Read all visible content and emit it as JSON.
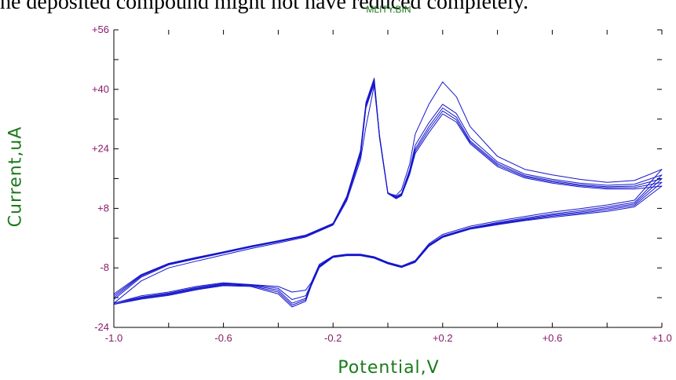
{
  "top_text": "he deposited compound might not have reduced completely.",
  "chart_data": {
    "type": "line",
    "title": "MLITY.BIN",
    "xlabel": "Potential,V",
    "ylabel": "Current,uA",
    "xlim": [
      -1.0,
      1.0
    ],
    "ylim": [
      -24,
      56
    ],
    "x_ticks": [
      "-1.0",
      "-0.6",
      "-0.2",
      "+0.2",
      "+0.6",
      "+1.0"
    ],
    "y_ticks": [
      "-24",
      "-8",
      "+8",
      "+24",
      "+40",
      "+56"
    ],
    "colors": {
      "series": "#1515cc",
      "tick_labels": "#8a1a6a",
      "axis_titles": "#1a7a1a"
    },
    "series": [
      {
        "x": [
          -1.0,
          -0.9,
          -0.8,
          -0.7,
          -0.6,
          -0.5,
          -0.4,
          -0.3,
          -0.2,
          -0.15,
          -0.1,
          -0.08,
          -0.05,
          -0.03,
          0.0,
          0.03,
          0.05,
          0.08,
          0.1,
          0.15,
          0.2,
          0.25,
          0.3,
          0.4,
          0.5,
          0.6,
          0.7,
          0.8,
          0.9,
          1.0,
          0.9,
          0.8,
          0.7,
          0.6,
          0.5,
          0.4,
          0.3,
          0.2,
          0.15,
          0.1,
          0.05,
          0.0,
          -0.05,
          -0.1,
          -0.15,
          -0.2,
          -0.25,
          -0.28,
          -0.3,
          -0.35,
          -0.4,
          -0.5,
          -0.6,
          -0.7,
          -0.8,
          -0.9,
          -1.0
        ],
        "y": [
          -17.5,
          -11.5,
          -8.0,
          -6.2,
          -4.5,
          -2.8,
          -1.3,
          0.3,
          3.5,
          10.0,
          21.0,
          30.0,
          41.0,
          27.0,
          12.0,
          11.5,
          13.0,
          20.0,
          28.0,
          36.0,
          42.0,
          38.0,
          30.0,
          22.0,
          18.5,
          17.0,
          15.8,
          15.0,
          15.5,
          18.5,
          10.2,
          8.9,
          7.9,
          7.0,
          5.8,
          4.6,
          3.2,
          1.0,
          -1.5,
          -6.0,
          -7.5,
          -6.5,
          -5.0,
          -4.3,
          -4.3,
          -4.8,
          -7.0,
          -12.0,
          -14.0,
          -14.5,
          -13.0,
          -12.5,
          -12.0,
          -13.0,
          -14.5,
          -15.5,
          -17.5
        ]
      },
      {
        "x": [
          -1.0,
          -0.9,
          -0.8,
          -0.7,
          -0.6,
          -0.5,
          -0.4,
          -0.3,
          -0.2,
          -0.15,
          -0.1,
          -0.08,
          -0.05,
          -0.03,
          0.0,
          0.03,
          0.05,
          0.08,
          0.1,
          0.15,
          0.2,
          0.25,
          0.3,
          0.4,
          0.5,
          0.6,
          0.7,
          0.8,
          0.9,
          1.0,
          0.9,
          0.8,
          0.7,
          0.6,
          0.5,
          0.4,
          0.3,
          0.2,
          0.15,
          0.1,
          0.05,
          0.0,
          -0.05,
          -0.1,
          -0.15,
          -0.2,
          -0.25,
          -0.28,
          -0.3,
          -0.35,
          -0.4,
          -0.5,
          -0.6,
          -0.7,
          -0.8,
          -0.9,
          -1.0
        ],
        "y": [
          -16.5,
          -10.5,
          -7.2,
          -5.6,
          -4.0,
          -2.4,
          -1.0,
          0.5,
          3.7,
          10.5,
          22.0,
          35.0,
          41.5,
          27.5,
          12.2,
          11.2,
          12.0,
          18.5,
          25.0,
          31.0,
          36.0,
          33.5,
          27.0,
          20.5,
          17.2,
          15.8,
          14.8,
          14.2,
          14.5,
          17.0,
          9.6,
          8.4,
          7.4,
          6.5,
          5.4,
          4.2,
          2.8,
          0.6,
          -1.8,
          -6.2,
          -7.6,
          -6.6,
          -5.1,
          -4.4,
          -4.4,
          -4.9,
          -7.3,
          -12.3,
          -15.5,
          -16.5,
          -13.5,
          -12.5,
          -12.2,
          -13.3,
          -14.8,
          -15.8,
          -17.5
        ]
      },
      {
        "x": [
          -1.0,
          -0.9,
          -0.8,
          -0.7,
          -0.6,
          -0.5,
          -0.4,
          -0.3,
          -0.2,
          -0.15,
          -0.1,
          -0.08,
          -0.05,
          -0.03,
          0.0,
          0.03,
          0.05,
          0.08,
          0.1,
          0.15,
          0.2,
          0.25,
          0.3,
          0.4,
          0.5,
          0.6,
          0.7,
          0.8,
          0.9,
          1.0,
          0.9,
          0.8,
          0.7,
          0.6,
          0.5,
          0.4,
          0.3,
          0.2,
          0.15,
          0.1,
          0.05,
          0.0,
          -0.05,
          -0.1,
          -0.15,
          -0.2,
          -0.25,
          -0.28,
          -0.3,
          -0.35,
          -0.4,
          -0.5,
          -0.6,
          -0.7,
          -0.8,
          -0.9,
          -1.0
        ],
        "y": [
          -16.0,
          -10.2,
          -7.0,
          -5.4,
          -3.9,
          -2.3,
          -0.9,
          0.6,
          3.8,
          10.8,
          22.5,
          35.5,
          42.0,
          27.0,
          12.0,
          11.0,
          11.8,
          18.0,
          24.0,
          30.0,
          35.0,
          32.5,
          26.2,
          20.0,
          16.8,
          15.4,
          14.4,
          13.8,
          14.0,
          16.0,
          9.2,
          8.0,
          7.0,
          6.2,
          5.1,
          4.0,
          2.6,
          0.4,
          -2.0,
          -6.3,
          -7.7,
          -6.7,
          -5.2,
          -4.5,
          -4.5,
          -5.0,
          -7.5,
          -12.5,
          -16.2,
          -17.5,
          -14.0,
          -12.6,
          -12.4,
          -13.5,
          -15.0,
          -16.0,
          -17.8
        ]
      },
      {
        "x": [
          -1.0,
          -0.9,
          -0.8,
          -0.7,
          -0.6,
          -0.5,
          -0.4,
          -0.3,
          -0.2,
          -0.15,
          -0.1,
          -0.08,
          -0.05,
          -0.03,
          0.0,
          0.03,
          0.05,
          0.08,
          0.1,
          0.15,
          0.2,
          0.25,
          0.3,
          0.4,
          0.5,
          0.6,
          0.7,
          0.8,
          0.9,
          1.0,
          0.9,
          0.8,
          0.7,
          0.6,
          0.5,
          0.4,
          0.3,
          0.2,
          0.15,
          0.1,
          0.05,
          0.0,
          -0.05,
          -0.1,
          -0.15,
          -0.2,
          -0.25,
          -0.28,
          -0.3,
          -0.35,
          -0.4,
          -0.5,
          -0.6,
          -0.7,
          -0.8,
          -0.9,
          -1.0
        ],
        "y": [
          -15.5,
          -10.0,
          -6.9,
          -5.3,
          -3.8,
          -2.2,
          -0.8,
          0.7,
          3.9,
          11.0,
          23.0,
          36.0,
          42.5,
          27.0,
          12.0,
          10.8,
          11.6,
          17.6,
          23.4,
          29.2,
          34.2,
          31.8,
          25.8,
          19.6,
          16.5,
          15.1,
          14.1,
          13.5,
          13.6,
          15.0,
          8.8,
          7.6,
          6.7,
          5.9,
          4.9,
          3.8,
          2.5,
          0.3,
          -2.1,
          -6.4,
          -7.8,
          -6.8,
          -5.3,
          -4.6,
          -4.6,
          -5.1,
          -7.7,
          -12.7,
          -16.6,
          -18.0,
          -14.5,
          -12.8,
          -12.6,
          -13.7,
          -15.2,
          -16.2,
          -17.8
        ]
      },
      {
        "x": [
          -1.0,
          -0.9,
          -0.8,
          -0.7,
          -0.6,
          -0.5,
          -0.4,
          -0.3,
          -0.2,
          -0.15,
          -0.1,
          -0.08,
          -0.05,
          -0.03,
          0.0,
          0.03,
          0.05,
          0.08,
          0.1,
          0.15,
          0.2,
          0.25,
          0.3,
          0.4,
          0.5,
          0.6,
          0.7,
          0.8,
          0.9,
          1.0,
          0.9,
          0.8,
          0.7,
          0.6,
          0.5,
          0.4,
          0.3,
          0.2,
          0.15,
          0.1,
          0.05,
          0.0,
          -0.05,
          -0.1,
          -0.15,
          -0.2,
          -0.25,
          -0.28,
          -0.3,
          -0.35,
          -0.4,
          -0.5,
          -0.6,
          -0.7,
          -0.8,
          -0.9,
          -1.0
        ],
        "y": [
          -15.0,
          -9.8,
          -6.8,
          -5.2,
          -3.7,
          -2.1,
          -0.7,
          0.8,
          4.0,
          11.2,
          23.5,
          36.5,
          43.0,
          27.0,
          12.0,
          10.6,
          11.4,
          17.2,
          22.8,
          28.4,
          33.4,
          31.2,
          25.4,
          19.2,
          16.2,
          14.8,
          13.8,
          13.2,
          13.2,
          14.0,
          8.4,
          7.2,
          6.4,
          5.6,
          4.7,
          3.6,
          2.4,
          0.2,
          -2.2,
          -6.5,
          -7.9,
          -6.9,
          -5.4,
          -4.7,
          -4.7,
          -5.2,
          -7.9,
          -12.9,
          -17.0,
          -18.5,
          -15.0,
          -13.0,
          -12.8,
          -13.9,
          -15.4,
          -16.4,
          -17.8
        ]
      }
    ]
  }
}
